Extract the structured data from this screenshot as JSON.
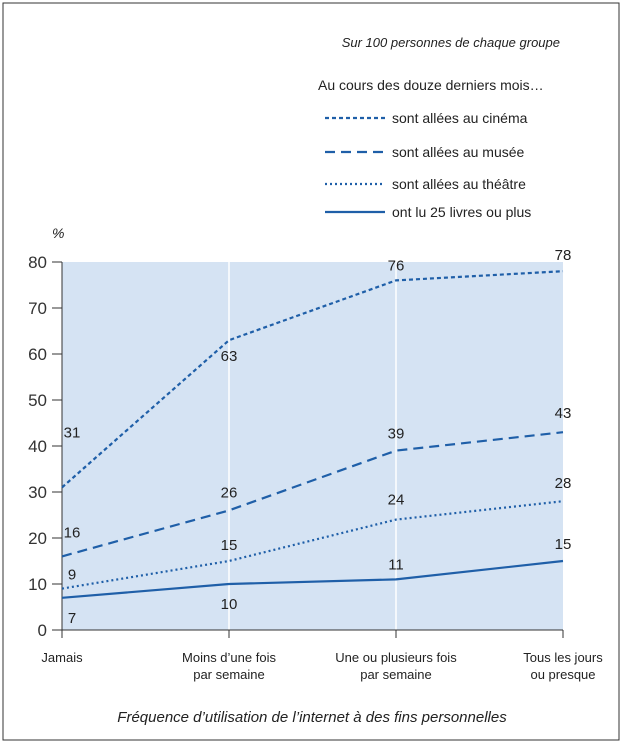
{
  "chart_data": {
    "type": "line",
    "subtitle": "Sur 100 personnes de chaque groupe",
    "legend_title": "Au cours des douze derniers mois…",
    "y_label": "%",
    "x_label": "Fréquence d’utilisation de l’internet à des fins personnelles",
    "categories": [
      "Jamais",
      "Moins d’une fois\npar semaine",
      "Une ou plusieurs fois\npar semaine",
      "Tous les jours\nou presque"
    ],
    "series": [
      {
        "name": "sont allées au cinéma",
        "color": "#1f5fa8",
        "dash": "4,3",
        "values": [
          31,
          63,
          76,
          78
        ]
      },
      {
        "name": "sont allées au musée",
        "color": "#1f5fa8",
        "dash": "10,6",
        "values": [
          16,
          26,
          39,
          43
        ]
      },
      {
        "name": "sont allées au théâtre",
        "color": "#1f5fa8",
        "dash": "2,3",
        "values": [
          9,
          15,
          24,
          28
        ]
      },
      {
        "name": "ont lu 25 livres ou plus",
        "color": "#1f5fa8",
        "dash": "none",
        "values": [
          7,
          10,
          11,
          15
        ]
      }
    ],
    "ylim": [
      0,
      80
    ],
    "yticks": [
      0,
      10,
      20,
      30,
      40,
      50,
      60,
      70,
      80
    ],
    "grid": true
  }
}
